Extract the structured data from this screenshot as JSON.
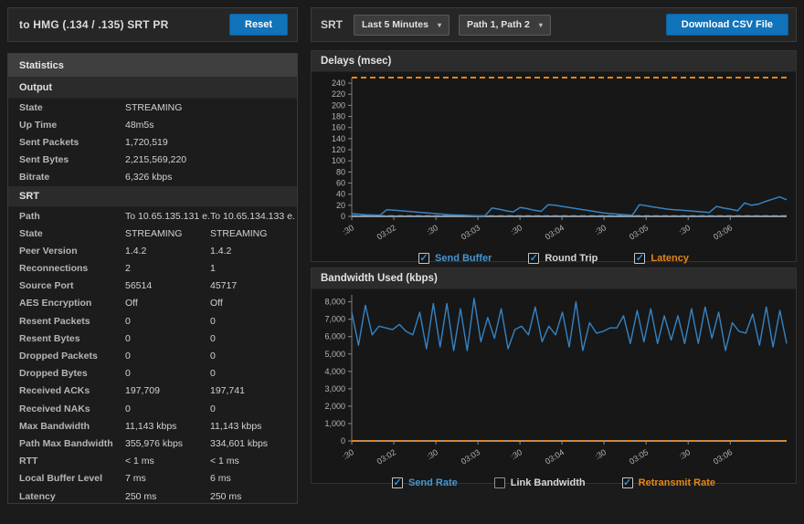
{
  "stream_header": {
    "title": "to HMG (.134 / .135) SRT PR",
    "reset_label": "Reset"
  },
  "toolbar": {
    "srt_label": "SRT",
    "time_range_value": "Last 5 Minutes",
    "path_filter_value": "Path 1, Path 2",
    "download_label": "Download CSV File",
    "chevron": "▾"
  },
  "statistics": {
    "panel_title": "Statistics",
    "sections": [
      {
        "title": "Output",
        "rows": [
          {
            "label": "State",
            "values": [
              "STREAMING"
            ]
          },
          {
            "label": "Up Time",
            "values": [
              "48m5s"
            ]
          },
          {
            "label": "Sent Packets",
            "values": [
              "1,720,519"
            ]
          },
          {
            "label": "Sent Bytes",
            "values": [
              "2,215,569,220"
            ]
          },
          {
            "label": "Bitrate",
            "values": [
              "6,326 kbps"
            ]
          }
        ]
      },
      {
        "title": "SRT",
        "rows": [
          {
            "label": "Path",
            "values": [
              "To 10.65.135.131 e...",
              "To 10.65.134.133 e..."
            ]
          },
          {
            "label": "State",
            "values": [
              "STREAMING",
              "STREAMING"
            ]
          },
          {
            "label": "Peer Version",
            "values": [
              "1.4.2",
              "1.4.2"
            ]
          },
          {
            "label": "Reconnections",
            "values": [
              "2",
              "1"
            ]
          },
          {
            "label": "Source Port",
            "values": [
              "56514",
              "45717"
            ]
          },
          {
            "label": "AES Encryption",
            "values": [
              "Off",
              "Off"
            ]
          },
          {
            "label": "Resent Packets",
            "values": [
              "0",
              "0"
            ]
          },
          {
            "label": "Resent Bytes",
            "values": [
              "0",
              "0"
            ]
          },
          {
            "label": "Dropped Packets",
            "values": [
              "0",
              "0"
            ]
          },
          {
            "label": "Dropped Bytes",
            "values": [
              "0",
              "0"
            ]
          },
          {
            "label": "Received ACKs",
            "values": [
              "197,709",
              "197,741"
            ]
          },
          {
            "label": "Received NAKs",
            "values": [
              "0",
              "0"
            ]
          },
          {
            "label": "Max Bandwidth",
            "values": [
              "11,143 kbps",
              "11,143 kbps"
            ]
          },
          {
            "label": "Path Max Bandwidth",
            "values": [
              "355,976 kbps",
              "334,601 kbps"
            ]
          },
          {
            "label": "RTT",
            "values": [
              "< 1 ms",
              "< 1 ms"
            ]
          },
          {
            "label": "Local Buffer Level",
            "values": [
              "7 ms",
              "6 ms"
            ]
          },
          {
            "label": "Latency",
            "values": [
              "250 ms",
              "250 ms"
            ]
          }
        ]
      }
    ]
  },
  "chart_data": [
    {
      "id": "delays",
      "type": "line",
      "title": "Delays (msec)",
      "ylim": [
        0,
        250
      ],
      "grid": false,
      "yticks": {
        "values": [
          0,
          20,
          40,
          60,
          80,
          100,
          120,
          140,
          160,
          180,
          200,
          220,
          240
        ],
        "labels": [
          "0",
          "20",
          "40",
          "60",
          "80",
          "100",
          "120",
          "140",
          "160",
          "180",
          "200",
          "220",
          "240"
        ]
      },
      "xtick_labels": [
        ":30",
        "03:02",
        ":30",
        "03:03",
        ":30",
        "03:04",
        ":30",
        "03:05",
        ":30",
        "03:06"
      ],
      "series": [
        {
          "name": "Round Trip",
          "color": "#6fa8d8",
          "style": "dashed",
          "width": 1.2,
          "constant": 1
        },
        {
          "name": "Send Buffer",
          "color": "#3583c4",
          "style": "solid",
          "width": 1.5,
          "values": [
            5,
            4,
            3,
            2.5,
            2,
            12,
            11,
            10,
            9,
            8,
            7,
            6,
            5,
            4,
            3,
            2.5,
            2,
            1.5,
            1,
            1,
            15,
            13,
            10,
            8,
            16,
            14,
            11,
            9,
            21,
            20,
            18,
            16,
            14,
            12,
            10,
            8,
            6,
            5,
            4,
            3,
            2,
            21,
            19,
            17,
            15,
            13,
            12,
            11,
            10,
            9,
            8,
            7,
            18,
            15,
            13,
            10,
            24,
            20,
            22,
            27,
            31,
            35,
            30
          ]
        },
        {
          "name": "Latency",
          "color": "#e2861a",
          "style": "dashed",
          "width": 2,
          "constant": 250
        }
      ],
      "legend": [
        {
          "label": "Send Buffer",
          "checked": true,
          "text_color": "#4596d3"
        },
        {
          "label": "Round Trip",
          "checked": true,
          "text_color": "#d6d6d6"
        },
        {
          "label": "Latency",
          "checked": true,
          "text_color": "#e2861a"
        }
      ]
    },
    {
      "id": "bandwidth",
      "type": "line",
      "title": "Bandwidth Used (kbps)",
      "ylim": [
        0,
        8400
      ],
      "grid": false,
      "yticks": {
        "values": [
          0,
          1000,
          2000,
          3000,
          4000,
          5000,
          6000,
          7000,
          8000
        ],
        "labels": [
          "0",
          "1,000",
          "2,000",
          "3,000",
          "4,000",
          "5,000",
          "6,000",
          "7,000",
          "8,000"
        ]
      },
      "xtick_labels": [
        ":30",
        "03:02",
        ":30",
        "03:03",
        ":30",
        "03:04",
        ":30",
        "03:05",
        ":30",
        "03:06"
      ],
      "series": [
        {
          "name": "Send Rate",
          "color": "#3583c4",
          "style": "solid",
          "width": 1.4,
          "values": [
            7400,
            5500,
            7800,
            6100,
            6600,
            6500,
            6400,
            6700,
            6300,
            6100,
            7400,
            5300,
            7900,
            5400,
            7900,
            5200,
            7600,
            5200,
            8200,
            5700,
            7100,
            5900,
            7600,
            5300,
            6400,
            6600,
            6100,
            7700,
            5700,
            6600,
            6100,
            7400,
            5400,
            8000,
            5200,
            6800,
            6200,
            6300,
            6500,
            6500,
            7200,
            5600,
            7500,
            5700,
            7600,
            5600,
            7200,
            5800,
            7200,
            5600,
            7600,
            5600,
            7700,
            5900,
            7400,
            5200,
            6800,
            6300,
            6200,
            7300,
            5500,
            7700,
            5400,
            7500,
            5600
          ]
        },
        {
          "name": "Retransmit Rate",
          "color": "#e2861a",
          "style": "dashed",
          "width": 2,
          "constant": 0
        }
      ],
      "legend": [
        {
          "label": "Send Rate",
          "checked": true,
          "text_color": "#4596d3"
        },
        {
          "label": "Link Bandwidth",
          "checked": false,
          "text_color": "#d6d6d6"
        },
        {
          "label": "Retransmit Rate",
          "checked": true,
          "text_color": "#e2861a"
        }
      ]
    }
  ]
}
